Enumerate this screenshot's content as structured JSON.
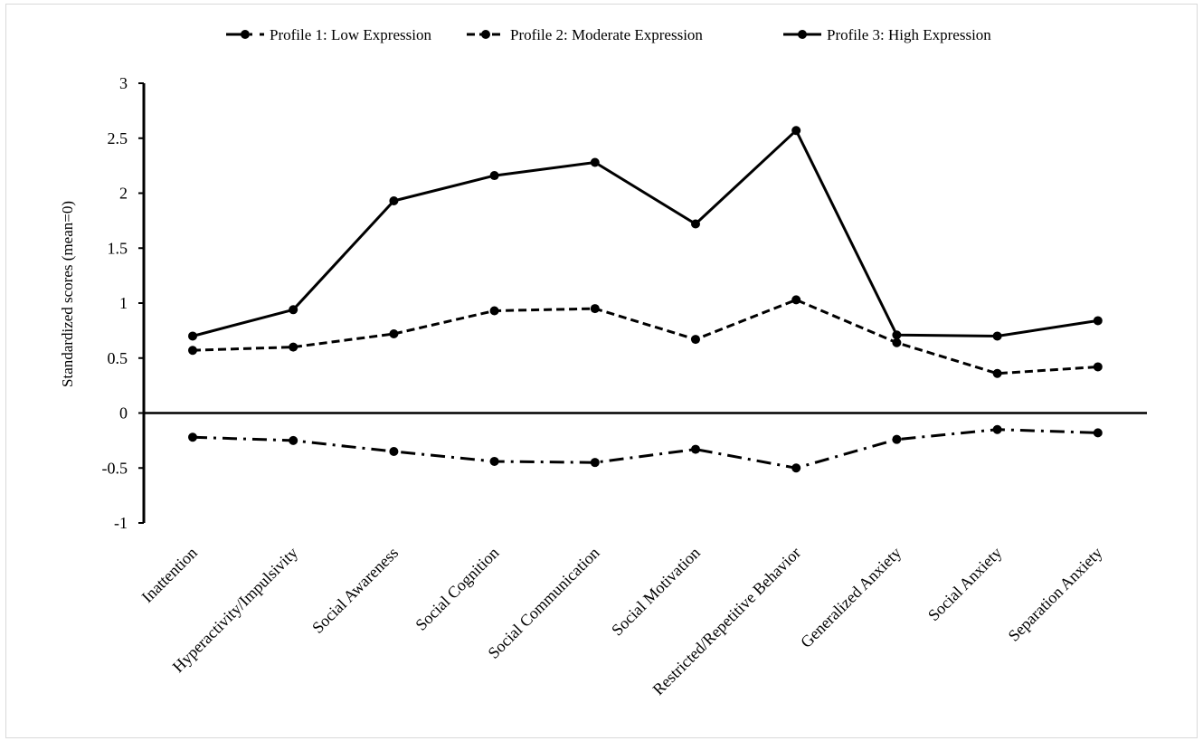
{
  "chart_data": {
    "type": "line",
    "title": "",
    "xlabel": "",
    "ylabel": "Standardized scores (mean=0)",
    "ylim": [
      -1,
      3
    ],
    "yticks": [
      "3",
      "2.5",
      "2",
      "1.5",
      "1",
      "0.5",
      "0",
      "-0.5",
      "-1"
    ],
    "ytick_values": [
      3,
      2.5,
      2,
      1.5,
      1,
      0.5,
      0,
      -0.5,
      -1
    ],
    "grid": false,
    "legend_position": "top",
    "categories": [
      "Inattention",
      "Hyperactivity/Impulsivity",
      "Social Awareness",
      "Social Cognition",
      "Social Communication",
      "Social Motivation",
      "Restricted/Repetitive Behavior",
      "Generalized Anxiety",
      "Social Anxiety",
      "Separation Anxiety"
    ],
    "series": [
      {
        "name": "Profile 1: Low Expression",
        "line_style": "dash-dot",
        "color": "#000000",
        "values": [
          -0.22,
          -0.25,
          -0.35,
          -0.44,
          -0.45,
          -0.33,
          -0.5,
          -0.24,
          -0.15,
          -0.18
        ]
      },
      {
        "name": "Profile 2: Moderate Expression",
        "line_style": "dashed",
        "color": "#000000",
        "values": [
          0.57,
          0.6,
          0.72,
          0.93,
          0.95,
          0.67,
          1.03,
          0.64,
          0.36,
          0.42
        ]
      },
      {
        "name": "Profile 3: High Expression",
        "line_style": "solid",
        "color": "#000000",
        "values": [
          0.7,
          0.94,
          1.93,
          2.16,
          2.28,
          1.72,
          2.57,
          0.71,
          0.7,
          0.84
        ]
      }
    ]
  }
}
